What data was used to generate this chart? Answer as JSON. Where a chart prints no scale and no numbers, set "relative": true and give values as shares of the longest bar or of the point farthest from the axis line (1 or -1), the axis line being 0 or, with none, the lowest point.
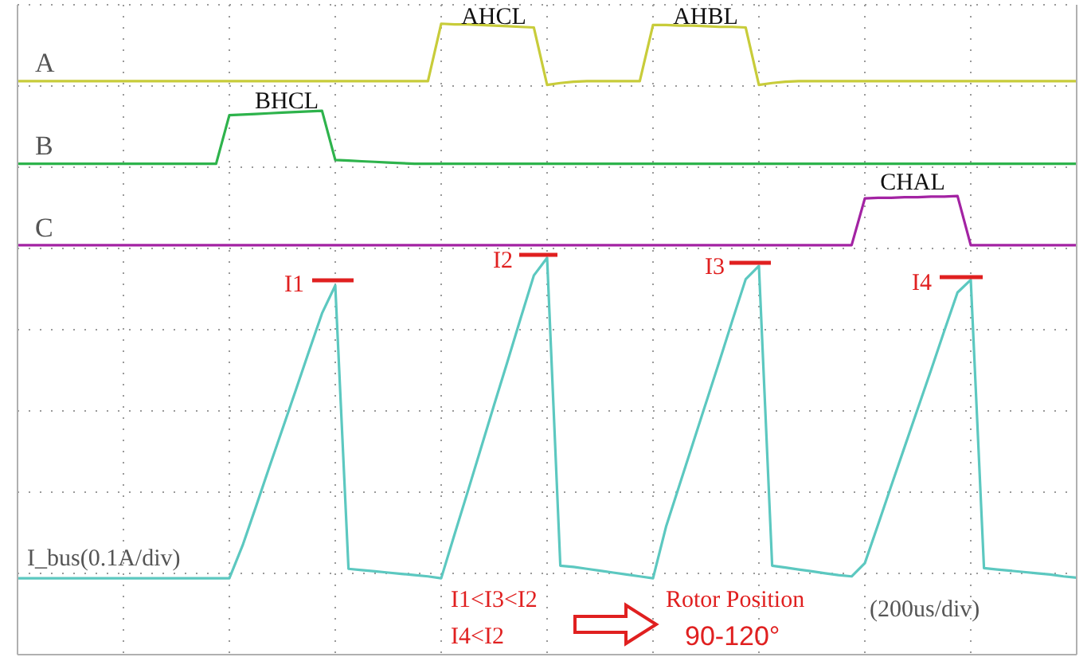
{
  "chart_data": {
    "type": "line",
    "relative": true,
    "grid": true,
    "legend": false,
    "marker": "none",
    "line_style": "solid",
    "categories": [
      null,
      null,
      null,
      null,
      null,
      null,
      null,
      null,
      null,
      null,
      null,
      null,
      null,
      null,
      null,
      null,
      null,
      null,
      null,
      null,
      null,
      null,
      null,
      null,
      null,
      null,
      null,
      null,
      null,
      null,
      null,
      null,
      null,
      null,
      null,
      null,
      null,
      null,
      null,
      null,
      null,
      null,
      null,
      null,
      null,
      null,
      null,
      null,
      null,
      null,
      null,
      null,
      null,
      null,
      null,
      null,
      null,
      null,
      null,
      null,
      null,
      null,
      null,
      null,
      null,
      null,
      null,
      null,
      null,
      null,
      null,
      null,
      null,
      null,
      null,
      null,
      null,
      null,
      null,
      null,
      null
    ],
    "annotations": [
      "AHCL",
      "AHBL",
      "BHCL",
      "CHAL",
      "I1",
      "I2",
      "I3",
      "I4",
      "I1<I3<I2",
      "I4<I2",
      "Rotor Position",
      "90-120°",
      "(200us/div)"
    ],
    "series": [
      {
        "name": "A",
        "color": "#c8cc3a",
        "values": [
          0.909,
          0.909,
          0.909,
          0.909,
          0.909,
          0.909,
          0.909,
          0.909,
          0.909,
          0.909,
          0.909,
          0.909,
          0.909,
          0.909,
          0.909,
          0.909,
          0.909,
          0.909,
          0.909,
          0.909,
          0.909,
          0.909,
          0.909,
          0.909,
          0.909,
          0.909,
          0.909,
          0.909,
          0.909,
          0.909,
          0.909,
          0.909,
          1.0,
          0.999,
          0.999,
          0.998,
          0.997,
          0.996,
          0.995,
          0.994,
          0.903,
          0.906,
          0.908,
          0.909,
          0.909,
          0.909,
          0.909,
          0.909,
          0.998,
          0.998,
          0.997,
          0.997,
          0.996,
          0.995,
          0.995,
          0.994,
          0.903,
          0.906,
          0.908,
          0.909,
          0.909,
          0.909,
          0.909,
          0.909,
          0.909,
          0.909,
          0.909,
          0.909,
          0.909,
          0.909,
          0.909,
          0.909,
          0.909,
          0.909,
          0.909,
          0.909,
          0.909,
          0.909,
          0.909,
          0.909,
          0.909
        ]
      },
      {
        "name": "B",
        "color": "#2eb34c",
        "values": [
          0.778,
          0.778,
          0.778,
          0.778,
          0.778,
          0.778,
          0.778,
          0.778,
          0.778,
          0.778,
          0.778,
          0.778,
          0.778,
          0.778,
          0.778,
          0.778,
          0.855,
          0.856,
          0.857,
          0.858,
          0.859,
          0.86,
          0.861,
          0.862,
          0.784,
          0.783,
          0.782,
          0.781,
          0.78,
          0.779,
          0.778,
          0.778,
          0.778,
          0.778,
          0.778,
          0.778,
          0.778,
          0.778,
          0.778,
          0.778,
          0.778,
          0.778,
          0.778,
          0.778,
          0.778,
          0.778,
          0.778,
          0.778,
          0.778,
          0.778,
          0.778,
          0.778,
          0.778,
          0.778,
          0.778,
          0.778,
          0.778,
          0.778,
          0.778,
          0.778,
          0.778,
          0.778,
          0.778,
          0.778,
          0.778,
          0.778,
          0.778,
          0.778,
          0.778,
          0.778,
          0.778,
          0.778,
          0.778,
          0.778,
          0.778,
          0.778,
          0.778,
          0.778,
          0.778,
          0.778,
          0.778
        ]
      },
      {
        "name": "C",
        "color": "#a323a3",
        "values": [
          0.649,
          0.649,
          0.649,
          0.649,
          0.649,
          0.649,
          0.649,
          0.649,
          0.649,
          0.649,
          0.649,
          0.649,
          0.649,
          0.649,
          0.649,
          0.649,
          0.649,
          0.649,
          0.649,
          0.649,
          0.649,
          0.649,
          0.649,
          0.649,
          0.649,
          0.649,
          0.649,
          0.649,
          0.649,
          0.649,
          0.649,
          0.649,
          0.649,
          0.649,
          0.649,
          0.649,
          0.649,
          0.649,
          0.649,
          0.649,
          0.649,
          0.649,
          0.649,
          0.649,
          0.649,
          0.649,
          0.649,
          0.649,
          0.649,
          0.649,
          0.649,
          0.649,
          0.649,
          0.649,
          0.649,
          0.649,
          0.649,
          0.649,
          0.649,
          0.649,
          0.649,
          0.649,
          0.649,
          0.649,
          0.723,
          0.724,
          0.724,
          0.725,
          0.725,
          0.726,
          0.726,
          0.727,
          0.649,
          0.649,
          0.649,
          0.649,
          0.649,
          0.649,
          0.649,
          0.649,
          0.649
        ]
      },
      {
        "name": "I_bus(0.1A/div)",
        "color": "#5cc8c0",
        "values": [
          0.121,
          0.121,
          0.121,
          0.121,
          0.121,
          0.121,
          0.121,
          0.121,
          0.121,
          0.121,
          0.121,
          0.121,
          0.121,
          0.121,
          0.121,
          0.121,
          0.121,
          0.173,
          0.234,
          0.296,
          0.357,
          0.418,
          0.48,
          0.541,
          0.585,
          0.136,
          0.134,
          0.132,
          0.13,
          0.128,
          0.126,
          0.124,
          0.121,
          0.19,
          0.258,
          0.327,
          0.396,
          0.464,
          0.533,
          0.601,
          0.629,
          0.141,
          0.139,
          0.136,
          0.133,
          0.13,
          0.127,
          0.124,
          0.121,
          0.204,
          0.269,
          0.334,
          0.399,
          0.464,
          0.53,
          0.595,
          0.616,
          0.141,
          0.138,
          0.135,
          0.132,
          0.129,
          0.126,
          0.124,
          0.145,
          0.206,
          0.268,
          0.329,
          0.39,
          0.451,
          0.513,
          0.574,
          0.594,
          0.137,
          0.135,
          0.133,
          0.131,
          0.129,
          0.127,
          0.124,
          0.122
        ]
      }
    ]
  }
}
